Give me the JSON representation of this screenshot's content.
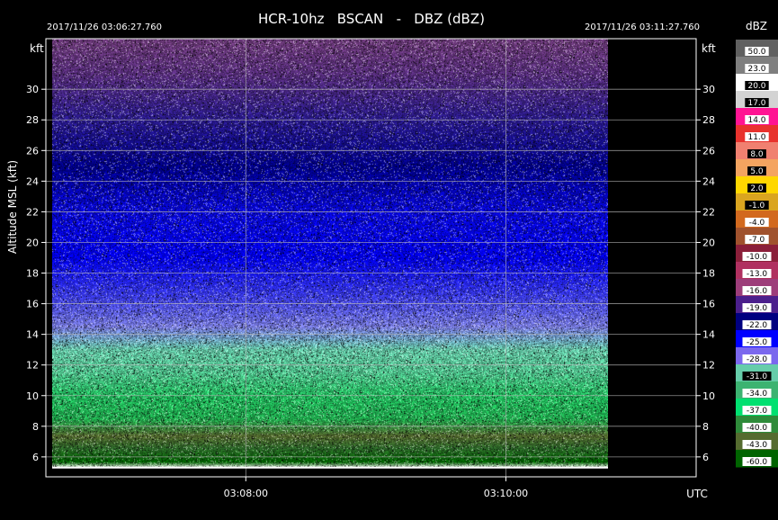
{
  "title": "HCR-10hz   BSCAN   -   DBZ (dBZ)",
  "start_time": "2017/11/26 03:06:27.760",
  "end_time": "2017/11/26 03:11:27.760",
  "y_unit": "kft",
  "y_axis_label": "Altitude MSL (kft)",
  "x_unit": "UTC",
  "colorbar_title": "dBZ",
  "chart_data": {
    "type": "heatmap",
    "title": "HCR-10hz   BSCAN   -   DBZ (dBZ)",
    "xlabel": "UTC",
    "ylabel": "Altitude MSL (kft)",
    "x_range": [
      "03:06:27.760",
      "03:11:27.760"
    ],
    "x_ticks": [
      "03:08:00",
      "03:10:00"
    ],
    "y_range": [
      4.7,
      33.3
    ],
    "y_ticks": [
      6,
      8,
      10,
      12,
      14,
      16,
      18,
      20,
      22,
      24,
      26,
      28,
      30
    ],
    "data_end_time": "03:10:47",
    "grid": true,
    "colorbar": {
      "title": "dBZ",
      "levels": [
        {
          "label": "50.0",
          "color": "#606060"
        },
        {
          "label": "23.0",
          "color": "#7f7f7f"
        },
        {
          "label": "20.0",
          "color": "#ffffff"
        },
        {
          "label": "17.0",
          "color": "#d3d3d3"
        },
        {
          "label": "14.0",
          "color": "#ff1493"
        },
        {
          "label": "11.0",
          "color": "#e8322d"
        },
        {
          "label": "8.0",
          "color": "#f08070"
        },
        {
          "label": "5.0",
          "color": "#f4a460"
        },
        {
          "label": "2.0",
          "color": "#ffd700"
        },
        {
          "label": "-1.0",
          "color": "#daa520"
        },
        {
          "label": "-4.0",
          "color": "#d2691e"
        },
        {
          "label": "-7.0",
          "color": "#a0522d"
        },
        {
          "label": "-10.0",
          "color": "#8b1f3a"
        },
        {
          "label": "-13.0",
          "color": "#b03060"
        },
        {
          "label": "-16.0",
          "color": "#9d3d7a"
        },
        {
          "label": "-19.0",
          "color": "#4b1f8c"
        },
        {
          "label": "-22.0",
          "color": "#000080"
        },
        {
          "label": "-25.0",
          "color": "#0000ff"
        },
        {
          "label": "-28.0",
          "color": "#7b68ee"
        },
        {
          "label": "-31.0",
          "color": "#66cdaa"
        },
        {
          "label": "-34.0",
          "color": "#3cb371"
        },
        {
          "label": "-37.0",
          "color": "#00e070"
        },
        {
          "label": "-40.0",
          "color": "#2e8b3a"
        },
        {
          "label": "-43.0",
          "color": "#556b2f"
        },
        {
          "label": "-60.0",
          "color": "#006400"
        }
      ]
    },
    "altitude_color_profile": [
      {
        "alt": 5.3,
        "color": "#ffffff"
      },
      {
        "alt": 5.7,
        "color": "#006400"
      },
      {
        "alt": 6.6,
        "color": "#2e6b2a"
      },
      {
        "alt": 7.4,
        "color": "#556b2f"
      },
      {
        "alt": 8.5,
        "color": "#20b050"
      },
      {
        "alt": 10.0,
        "color": "#22c060"
      },
      {
        "alt": 11.5,
        "color": "#50c890"
      },
      {
        "alt": 13.0,
        "color": "#66cdaa"
      },
      {
        "alt": 14.5,
        "color": "#7b7ee8"
      },
      {
        "alt": 16.5,
        "color": "#3c3cf5"
      },
      {
        "alt": 19.0,
        "color": "#0000ff"
      },
      {
        "alt": 22.0,
        "color": "#0808e0"
      },
      {
        "alt": 25.0,
        "color": "#000090"
      },
      {
        "alt": 28.0,
        "color": "#2a1a90"
      },
      {
        "alt": 31.0,
        "color": "#5a2f80"
      },
      {
        "alt": 33.0,
        "color": "#6d3a7c"
      }
    ]
  }
}
